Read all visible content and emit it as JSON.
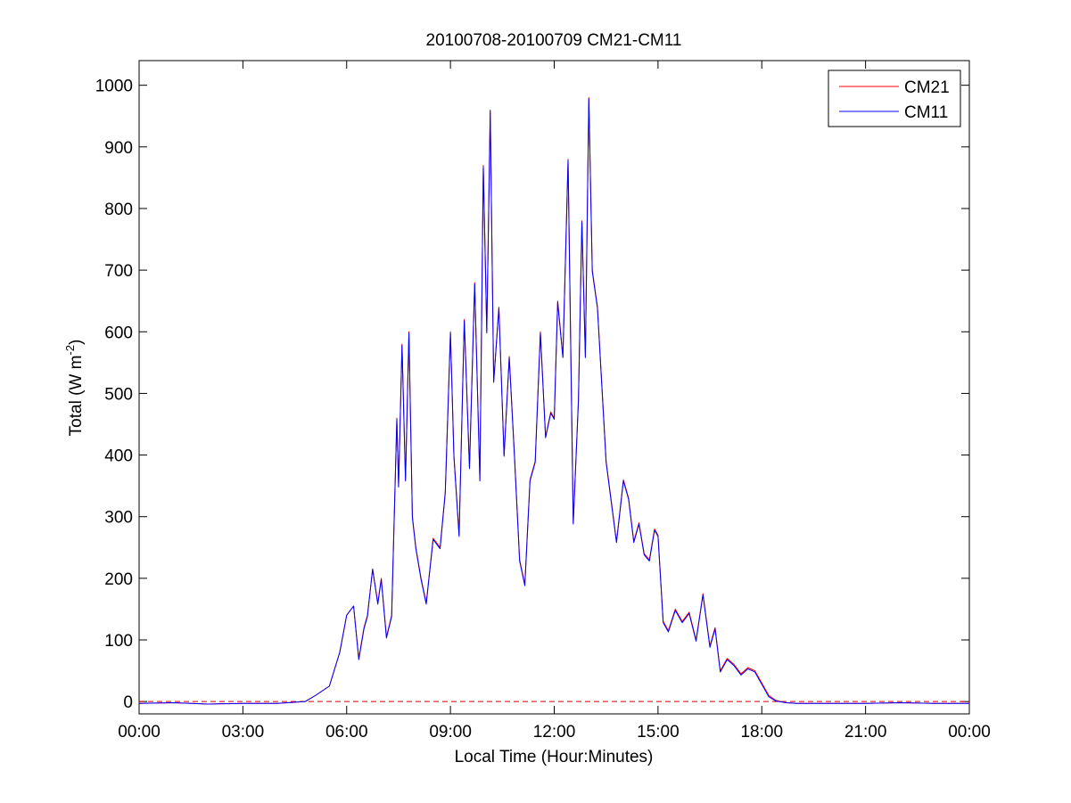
{
  "chart_data": {
    "type": "line",
    "title": "20100708-20100709 CM21-CM11",
    "xlabel": "Local Time (Hour:Minutes)",
    "ylabel_main": "Total (W m",
    "ylabel_sup": "-2",
    "ylabel_close": ")",
    "xlim": [
      0,
      24
    ],
    "ylim": [
      -20,
      1040
    ],
    "x_ticks": [
      0,
      3,
      6,
      9,
      12,
      15,
      18,
      21,
      24
    ],
    "x_tick_labels": [
      "00:00",
      "03:00",
      "06:00",
      "09:00",
      "12:00",
      "15:00",
      "18:00",
      "21:00",
      "00:00"
    ],
    "y_ticks": [
      0,
      100,
      200,
      300,
      400,
      500,
      600,
      700,
      800,
      900,
      1000
    ],
    "y_tick_labels": [
      "0",
      "100",
      "200",
      "300",
      "400",
      "500",
      "600",
      "700",
      "800",
      "900",
      "1000"
    ],
    "legend_position": "top-right",
    "zero_line": {
      "y": 0,
      "style": "dashed",
      "color": "#d00000"
    },
    "series": [
      {
        "name": "CM21",
        "color": "#ff0000",
        "x": [
          0,
          1,
          2,
          3,
          4,
          4.8,
          5.1,
          5.5,
          5.8,
          6.0,
          6.2,
          6.35,
          6.5,
          6.6,
          6.75,
          6.9,
          7.0,
          7.15,
          7.3,
          7.45,
          7.5,
          7.6,
          7.7,
          7.8,
          7.9,
          8.0,
          8.15,
          8.3,
          8.5,
          8.7,
          8.85,
          9.0,
          9.1,
          9.25,
          9.4,
          9.55,
          9.7,
          9.85,
          9.95,
          10.05,
          10.15,
          10.25,
          10.4,
          10.55,
          10.7,
          10.85,
          11.0,
          11.15,
          11.3,
          11.45,
          11.6,
          11.75,
          11.9,
          12.0,
          12.1,
          12.25,
          12.4,
          12.55,
          12.7,
          12.8,
          12.9,
          13.0,
          13.1,
          13.25,
          13.5,
          13.8,
          14.0,
          14.15,
          14.3,
          14.45,
          14.6,
          14.75,
          14.9,
          15.0,
          15.15,
          15.3,
          15.5,
          15.7,
          15.9,
          16.1,
          16.3,
          16.5,
          16.65,
          16.8,
          17.0,
          17.2,
          17.4,
          17.6,
          17.8,
          18.0,
          18.2,
          18.4,
          18.7,
          19.0,
          19.3,
          20,
          21,
          22,
          23,
          24
        ],
        "y": [
          -3,
          -2,
          -4,
          -3,
          -3,
          0,
          10,
          25,
          80,
          140,
          155,
          70,
          120,
          140,
          215,
          160,
          200,
          105,
          140,
          460,
          350,
          580,
          360,
          600,
          300,
          250,
          200,
          160,
          265,
          250,
          340,
          600,
          400,
          270,
          620,
          380,
          680,
          360,
          870,
          600,
          960,
          520,
          640,
          400,
          560,
          400,
          230,
          190,
          360,
          390,
          600,
          430,
          470,
          460,
          650,
          560,
          880,
          290,
          490,
          780,
          560,
          980,
          700,
          640,
          390,
          260,
          360,
          330,
          260,
          290,
          240,
          230,
          280,
          270,
          130,
          115,
          150,
          130,
          145,
          100,
          175,
          90,
          120,
          50,
          70,
          60,
          45,
          55,
          50,
          30,
          10,
          2,
          -2,
          -3,
          -3,
          -3,
          -3,
          -2,
          -3,
          -3
        ]
      },
      {
        "name": "CM11",
        "color": "#0000ff",
        "x": [
          0,
          1,
          2,
          3,
          4,
          4.8,
          5.1,
          5.5,
          5.8,
          6.0,
          6.2,
          6.35,
          6.5,
          6.6,
          6.75,
          6.9,
          7.0,
          7.15,
          7.3,
          7.45,
          7.5,
          7.6,
          7.7,
          7.8,
          7.9,
          8.0,
          8.15,
          8.3,
          8.5,
          8.7,
          8.85,
          9.0,
          9.1,
          9.25,
          9.4,
          9.55,
          9.7,
          9.85,
          9.95,
          10.05,
          10.15,
          10.25,
          10.4,
          10.55,
          10.7,
          10.85,
          11.0,
          11.15,
          11.3,
          11.45,
          11.6,
          11.75,
          11.9,
          12.0,
          12.1,
          12.25,
          12.4,
          12.55,
          12.7,
          12.8,
          12.9,
          13.0,
          13.1,
          13.25,
          13.5,
          13.8,
          14.0,
          14.15,
          14.3,
          14.45,
          14.6,
          14.75,
          14.9,
          15.0,
          15.15,
          15.3,
          15.5,
          15.7,
          15.9,
          16.1,
          16.3,
          16.5,
          16.65,
          16.8,
          17.0,
          17.2,
          17.4,
          17.6,
          17.8,
          18.0,
          18.2,
          18.4,
          18.7,
          19.0,
          19.3,
          20,
          21,
          22,
          23,
          24
        ],
        "y": [
          -3,
          -2,
          -4,
          -3,
          -3,
          0,
          10,
          25,
          80,
          140,
          155,
          68,
          118,
          138,
          215,
          158,
          198,
          103,
          138,
          458,
          348,
          578,
          358,
          598,
          298,
          248,
          198,
          158,
          263,
          248,
          338,
          598,
          398,
          268,
          618,
          378,
          678,
          358,
          868,
          598,
          958,
          518,
          638,
          398,
          558,
          398,
          228,
          188,
          358,
          388,
          598,
          428,
          468,
          458,
          648,
          558,
          878,
          288,
          488,
          778,
          558,
          978,
          698,
          638,
          388,
          258,
          358,
          328,
          258,
          288,
          238,
          228,
          278,
          268,
          128,
          113,
          148,
          128,
          143,
          98,
          173,
          88,
          118,
          48,
          68,
          58,
          43,
          53,
          48,
          28,
          8,
          1,
          -2,
          -3,
          -3,
          -3,
          -3,
          -2,
          -3,
          -3
        ]
      }
    ]
  }
}
